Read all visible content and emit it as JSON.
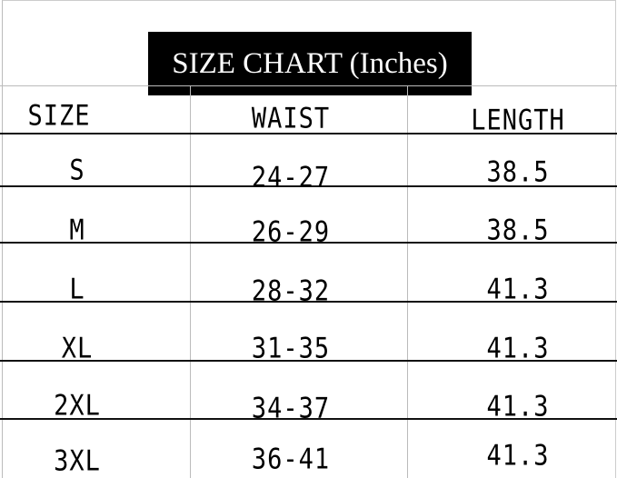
{
  "title": "SIZE CHART (Inches)",
  "headers": [
    "SIZE",
    "WAIST",
    "LENGTH"
  ],
  "rows": [
    [
      "S",
      "24-27",
      "38.5"
    ],
    [
      "M",
      "26-29",
      "38.5"
    ],
    [
      "L",
      "28-32",
      "41.3"
    ],
    [
      "XL",
      "31-35",
      "41.3"
    ],
    [
      "2XL",
      "34-37",
      "41.3"
    ],
    [
      "3XL",
      "36-41",
      "41.3"
    ]
  ]
}
